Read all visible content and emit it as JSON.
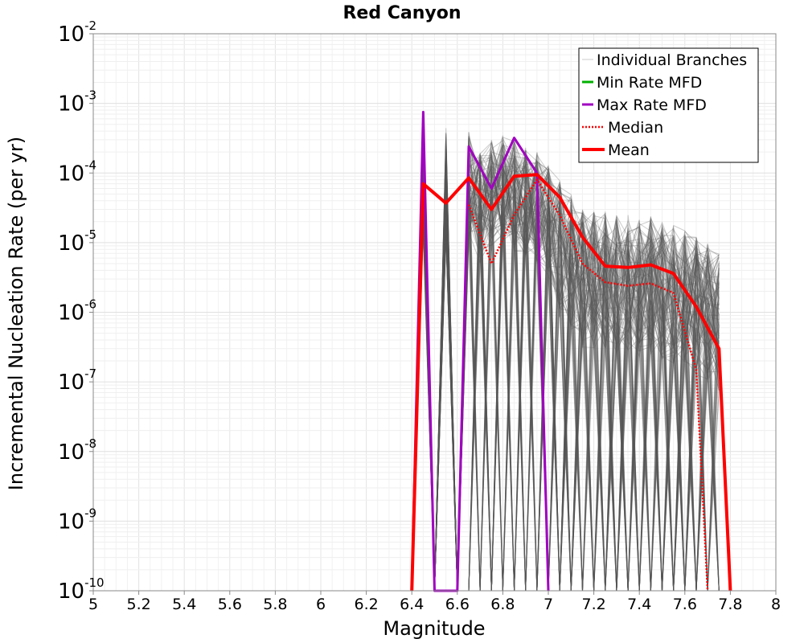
{
  "chart_data": {
    "type": "line",
    "title": "Red Canyon",
    "xlabel": "Magnitude",
    "ylabel": "Incremental Nucleation Rate (per yr)",
    "xlim": [
      5,
      8
    ],
    "ylim": [
      1e-10,
      0.01
    ],
    "y_scale": "log",
    "grid": true,
    "legend_position": "top-right",
    "x_ticks": [
      "5",
      "5.2",
      "5.4",
      "5.6",
      "5.8",
      "6",
      "6.2",
      "6.4",
      "6.6",
      "6.8",
      "7",
      "7.2",
      "7.4",
      "7.6",
      "7.8",
      "8"
    ],
    "y_ticks": [
      {
        "base": "10",
        "exp": "-2",
        "value": 0.01
      },
      {
        "base": "10",
        "exp": "-3",
        "value": 0.001
      },
      {
        "base": "10",
        "exp": "-4",
        "value": 0.0001
      },
      {
        "base": "10",
        "exp": "-5",
        "value": 1e-05
      },
      {
        "base": "10",
        "exp": "-6",
        "value": 1e-06
      },
      {
        "base": "10",
        "exp": "-7",
        "value": 1e-07
      },
      {
        "base": "10",
        "exp": "-8",
        "value": 1e-08
      },
      {
        "base": "10",
        "exp": "-9",
        "value": 1e-09
      },
      {
        "base": "10",
        "exp": "-10",
        "value": 1e-10
      }
    ],
    "series": [
      {
        "name": "Individual Branches",
        "color": "#555555",
        "style": "thin-translucent",
        "description_values": "many overlapping branch MFDs spanning 6.45-7.75",
        "values": []
      },
      {
        "name": "Min Rate MFD",
        "color": "#00b000",
        "style": "solid",
        "x": [
          6.45
        ],
        "y": [
          1e-10
        ]
      },
      {
        "name": "Max Rate MFD",
        "color": "#a000c0",
        "style": "solid",
        "x": [
          6.4,
          6.45,
          6.5,
          6.6,
          6.65,
          6.75,
          6.85,
          6.95,
          7.0
        ],
        "y": [
          1e-10,
          0.00075,
          1e-10,
          1e-10,
          0.00024,
          6e-05,
          0.00032,
          0.0001,
          1e-10
        ]
      },
      {
        "name": "Median",
        "color": "#ff0000",
        "style": "dotted",
        "x": [
          6.65,
          6.75,
          6.85,
          6.95,
          7.05,
          7.15,
          7.25,
          7.35,
          7.45,
          7.55,
          7.65,
          7.7
        ],
        "y": [
          3.5e-05,
          5e-06,
          2.5e-05,
          8e-05,
          2.5e-05,
          5e-06,
          2.7e-06,
          2.4e-06,
          2.6e-06,
          1.9e-06,
          1.5e-07,
          1e-10
        ]
      },
      {
        "name": "Mean",
        "color": "#ff0000",
        "style": "solid-thick",
        "x": [
          6.4,
          6.45,
          6.55,
          6.65,
          6.75,
          6.85,
          6.95,
          7.05,
          7.15,
          7.25,
          7.35,
          7.45,
          7.55,
          7.65,
          7.75,
          7.8
        ],
        "y": [
          1e-10,
          7e-05,
          3.7e-05,
          8.5e-05,
          3e-05,
          9e-05,
          9.5e-05,
          4.5e-05,
          1.2e-05,
          4.6e-06,
          4.4e-06,
          4.8e-06,
          3.6e-06,
          1.2e-06,
          3e-07,
          1e-10
        ]
      }
    ]
  }
}
